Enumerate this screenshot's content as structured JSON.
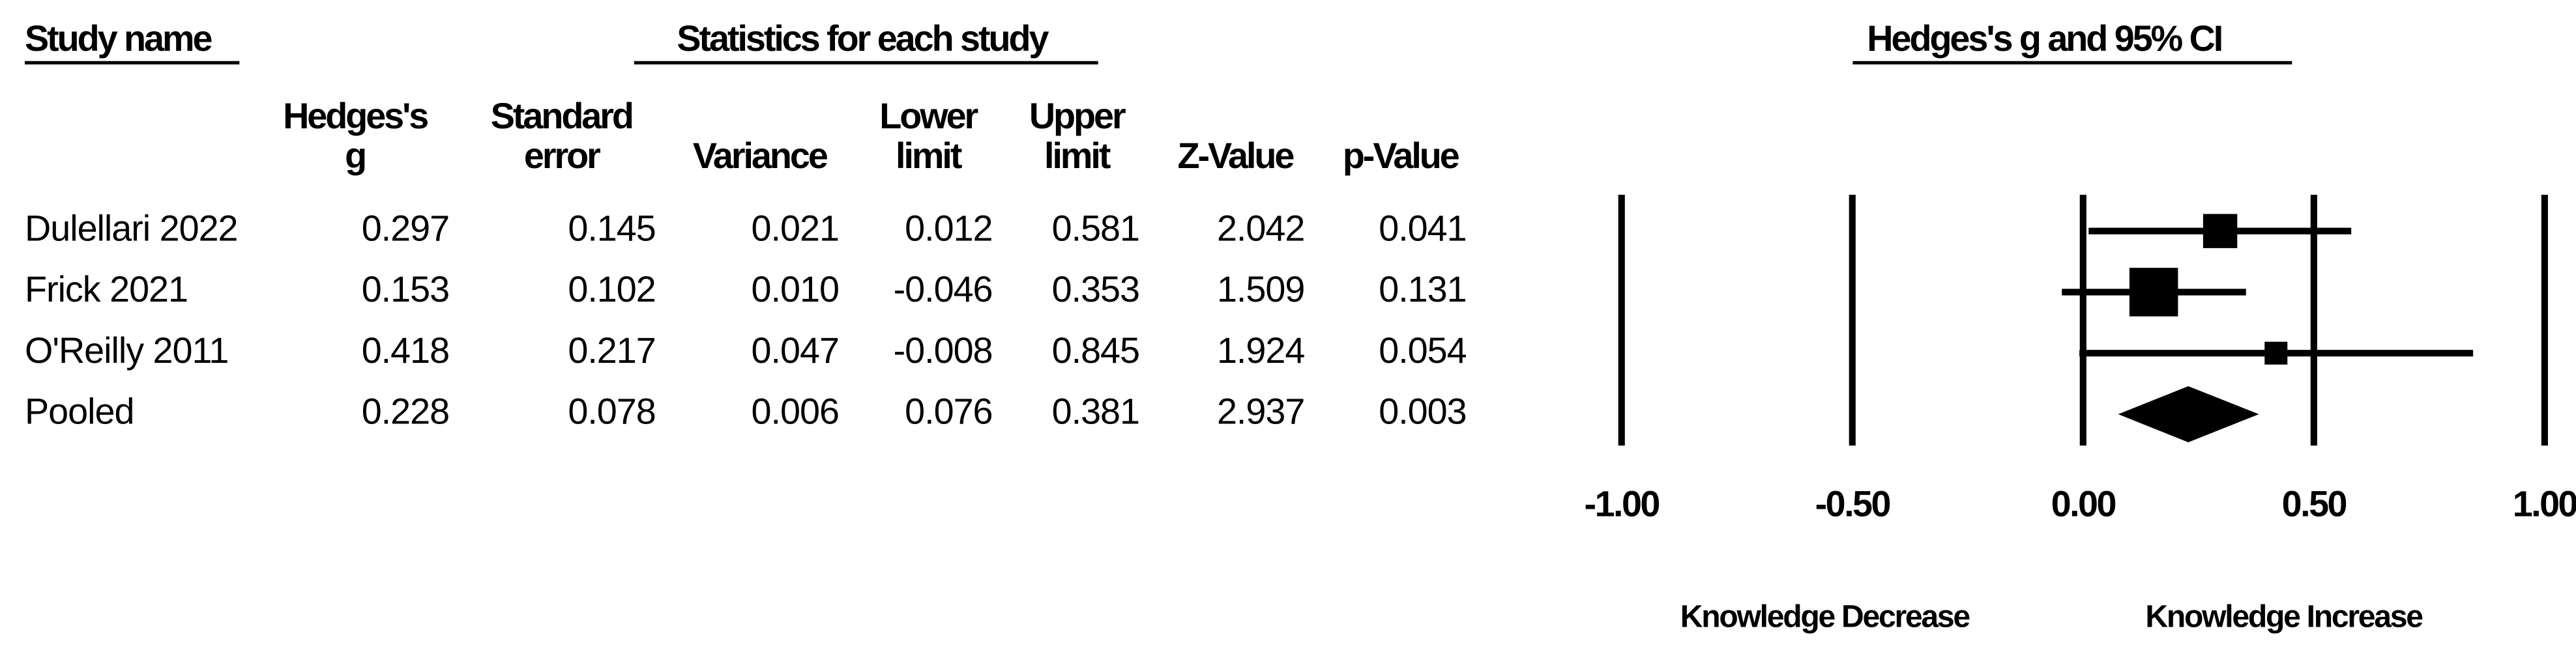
{
  "chart_data": {
    "type": "forest",
    "study_header": "Study name",
    "stats_header": "Statistics for each study",
    "title": "Hedges's g and 95% CI",
    "studies": [
      "Dulellari 2022",
      "Frick 2021",
      "O'Reilly 2011",
      "Pooled"
    ],
    "columns": [
      {
        "header": [
          "Hedges's",
          "g"
        ],
        "values": [
          0.297,
          0.153,
          0.418,
          0.228
        ],
        "value_labels": [
          "0.297",
          "0.153",
          "0.418",
          "0.228"
        ]
      },
      {
        "header": [
          "Standard",
          "error"
        ],
        "values": [
          0.145,
          0.102,
          0.217,
          0.078
        ],
        "value_labels": [
          "0.145",
          "0.102",
          "0.217",
          "0.078"
        ]
      },
      {
        "header": [
          "Variance"
        ],
        "values": [
          0.021,
          0.01,
          0.047,
          0.006
        ],
        "value_labels": [
          "0.021",
          "0.010",
          "0.047",
          "0.006"
        ]
      },
      {
        "header": [
          "Lower",
          "limit"
        ],
        "values": [
          0.012,
          -0.046,
          -0.008,
          0.076
        ],
        "value_labels": [
          "0.012",
          "-0.046",
          "-0.008",
          "0.076"
        ]
      },
      {
        "header": [
          "Upper",
          "limit"
        ],
        "values": [
          0.581,
          0.353,
          0.845,
          0.381
        ],
        "value_labels": [
          "0.581",
          "0.353",
          "0.845",
          "0.381"
        ]
      },
      {
        "header": [
          "Z-Value"
        ],
        "values": [
          2.042,
          1.509,
          1.924,
          2.937
        ],
        "value_labels": [
          "2.042",
          "1.509",
          "1.924",
          "2.937"
        ]
      },
      {
        "header": [
          "p-Value"
        ],
        "values": [
          0.041,
          0.131,
          0.054,
          0.003
        ],
        "value_labels": [
          "0.041",
          "0.131",
          "0.054",
          "0.003"
        ]
      }
    ],
    "xlim": [
      -1,
      1
    ],
    "xticks": [
      {
        "value": -1,
        "label": "-1.00"
      },
      {
        "value": -0.5,
        "label": "-0.50"
      },
      {
        "value": 0,
        "label": "0.00"
      },
      {
        "value": 0.5,
        "label": "0.50"
      },
      {
        "value": 1,
        "label": "1.00"
      }
    ],
    "grid": true,
    "color": "#000000",
    "left_label": "Knowledge Decrease",
    "right_label": "Knowledge Increase"
  }
}
